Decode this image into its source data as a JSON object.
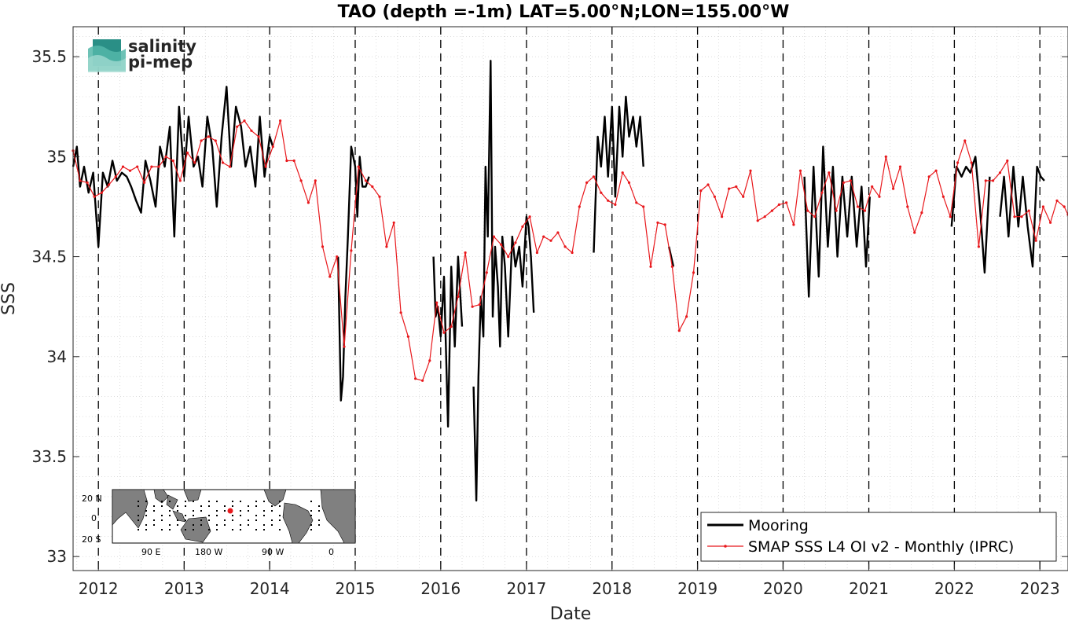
{
  "chart_data": {
    "type": "line",
    "title": "TAO (depth =-1m) LAT=5.00°N;LON=155.00°W",
    "xlabel": "Date",
    "ylabel": "SSS",
    "xlim": [
      "2011-09-15",
      "2023-05-01"
    ],
    "ylim": [
      32.93,
      35.65
    ],
    "yticks": [
      33,
      33.5,
      34,
      34.5,
      35,
      35.5
    ],
    "ytick_labels": [
      "33",
      "33.5",
      "34",
      "34.5",
      "35",
      "35.5"
    ],
    "xticks": [
      "2012-01-01",
      "2013-01-01",
      "2014-01-01",
      "2015-01-01",
      "2016-01-01",
      "2017-01-01",
      "2018-01-01",
      "2019-01-01",
      "2020-01-01",
      "2021-01-01",
      "2022-01-01",
      "2023-01-01"
    ],
    "xtick_labels": [
      "2012",
      "2013",
      "2014",
      "2015",
      "2016",
      "2017",
      "2018",
      "2019",
      "2020",
      "2021",
      "2022",
      "2023"
    ],
    "grid": true,
    "legend_position": "bottom-right",
    "series": [
      {
        "name": "Mooring",
        "color": "#000000",
        "x": [
          "2011-09-15",
          "2011-10-01",
          "2011-10-15",
          "2011-11-01",
          "2011-11-20",
          "2011-12-10",
          "2012-01-01",
          "2012-01-20",
          "2012-02-10",
          "2012-03-01",
          "2012-03-20",
          "2012-04-10",
          "2012-05-01",
          "2012-05-20",
          "2012-06-10",
          "2012-07-01",
          "2012-07-20",
          "2012-08-10",
          "2012-09-01",
          "2012-09-20",
          "2012-10-10",
          "2012-11-01",
          "2012-11-20",
          "2012-12-10",
          "2013-01-01",
          "2013-01-20",
          "2013-02-10",
          "2013-03-01",
          "2013-03-20",
          "2013-04-10",
          "2013-05-01",
          "2013-05-20",
          "2013-06-10",
          "2013-07-01",
          "2013-07-20",
          "2013-08-10",
          "2013-09-01",
          "2013-09-20",
          "2013-10-10",
          "2013-11-01",
          "2013-11-20",
          "2013-12-10",
          "2014-01-01",
          "2014-01-15",
          null,
          "2014-10-20",
          "2014-11-01",
          "2014-11-10",
          "2014-11-20",
          "2014-12-01",
          "2014-12-15",
          "2015-01-01",
          "2015-01-10",
          "2015-01-20",
          "2015-02-01",
          "2015-02-15",
          "2015-03-01",
          null,
          "2015-12-01",
          "2015-12-10",
          "2015-12-20",
          "2016-01-01",
          "2016-01-15",
          "2016-02-01",
          "2016-02-15",
          "2016-03-01",
          "2016-03-15",
          "2016-04-01",
          null,
          "2016-05-20",
          "2016-06-01",
          "2016-06-10",
          "2016-06-20",
          "2016-07-01",
          "2016-07-10",
          "2016-07-20",
          "2016-08-01",
          "2016-08-10",
          "2016-08-20",
          "2016-09-01",
          "2016-09-10",
          "2016-09-20",
          "2016-10-01",
          "2016-10-15",
          "2016-11-01",
          "2016-11-15",
          "2016-12-01",
          "2016-12-15",
          "2017-01-01",
          "2017-01-10",
          "2017-01-20",
          "2017-02-01",
          null,
          "2017-10-15",
          "2017-11-01",
          "2017-11-15",
          "2017-12-01",
          "2017-12-15",
          "2018-01-01",
          "2018-01-15",
          "2018-02-01",
          "2018-02-15",
          "2018-03-01",
          "2018-03-15",
          "2018-04-01",
          "2018-04-15",
          "2018-05-01",
          "2018-05-15",
          null,
          "2018-09-01",
          "2018-09-20",
          null,
          "2020-04-01",
          "2020-04-20",
          "2020-05-10",
          "2020-06-01",
          "2020-06-20",
          "2020-07-10",
          "2020-08-01",
          "2020-08-20",
          "2020-09-10",
          "2020-10-01",
          "2020-10-20",
          "2020-11-10",
          "2020-12-01",
          "2020-12-20",
          "2021-01-05",
          null,
          "2021-12-20",
          "2022-01-10",
          "2022-02-01",
          "2022-02-20",
          "2022-03-10",
          "2022-04-01",
          "2022-04-20",
          "2022-05-10",
          "2022-06-01",
          null,
          "2022-07-15",
          "2022-08-01",
          "2022-08-20",
          "2022-09-10",
          "2022-10-01",
          "2022-10-20",
          "2022-11-10",
          "2022-12-01",
          "2022-12-20",
          "2023-01-05",
          "2023-01-20"
        ],
        "y": [
          34.95,
          35.05,
          34.85,
          34.95,
          34.82,
          34.92,
          34.55,
          34.92,
          34.85,
          34.98,
          34.88,
          34.92,
          34.9,
          34.85,
          34.78,
          34.72,
          34.98,
          34.88,
          34.75,
          35.05,
          34.95,
          35.15,
          34.6,
          35.25,
          34.9,
          35.2,
          34.95,
          35.0,
          34.85,
          35.2,
          35.05,
          34.75,
          35.1,
          35.35,
          34.95,
          35.25,
          35.15,
          34.95,
          35.05,
          34.85,
          35.2,
          34.9,
          35.1,
          35.05,
          null,
          34.5,
          33.78,
          33.9,
          34.3,
          34.6,
          35.05,
          34.95,
          34.7,
          35.0,
          34.85,
          34.85,
          34.9,
          null,
          34.5,
          34.2,
          34.25,
          34.1,
          34.4,
          33.65,
          34.45,
          34.05,
          34.5,
          34.15,
          null,
          33.85,
          33.28,
          33.9,
          34.3,
          34.1,
          34.95,
          34.6,
          35.48,
          34.2,
          34.55,
          34.35,
          34.05,
          34.6,
          34.45,
          34.1,
          34.6,
          34.45,
          34.55,
          34.35,
          34.7,
          34.65,
          34.5,
          34.22,
          null,
          34.52,
          35.1,
          34.95,
          35.2,
          34.9,
          35.25,
          34.8,
          35.25,
          35.0,
          35.3,
          35.1,
          35.2,
          35.05,
          35.2,
          34.95,
          null,
          34.55,
          34.45,
          null,
          34.9,
          34.3,
          34.95,
          34.4,
          35.05,
          34.55,
          34.95,
          34.5,
          34.9,
          34.6,
          34.9,
          34.55,
          34.85,
          34.45,
          34.8,
          null,
          34.65,
          34.95,
          34.9,
          34.95,
          34.92,
          35.0,
          34.75,
          34.42,
          34.9,
          null,
          34.7,
          34.9,
          34.6,
          34.95,
          34.65,
          34.9,
          34.65,
          34.45,
          34.95,
          34.9,
          34.88
        ]
      },
      {
        "name": "SMAP SSS L4 OI v2 - Monthly (IPRC)",
        "color": "#e8181c",
        "x": [
          "2011-09-15",
          "2011-10-15",
          "2011-11-15",
          "2011-12-15",
          "2012-01-15",
          "2012-02-15",
          "2012-03-15",
          "2012-04-15",
          "2012-05-15",
          "2012-06-15",
          "2012-07-15",
          "2012-08-15",
          "2012-09-15",
          "2012-10-15",
          "2012-11-15",
          "2012-12-15",
          "2013-01-15",
          "2013-02-15",
          "2013-03-15",
          "2013-04-15",
          "2013-05-15",
          "2013-06-15",
          "2013-07-15",
          "2013-08-15",
          "2013-09-15",
          "2013-10-15",
          "2013-11-15",
          "2013-12-15",
          "2014-01-15",
          "2014-02-15",
          "2014-03-15",
          "2014-04-15",
          "2014-05-15",
          "2014-06-15",
          "2014-07-15",
          "2014-08-15",
          "2014-09-15",
          "2014-10-15",
          "2014-11-15",
          "2014-12-15",
          "2015-01-15",
          "2015-02-15",
          "2015-03-15",
          "2015-04-15",
          "2015-05-15",
          "2015-06-15",
          "2015-07-15",
          "2015-08-15",
          "2015-09-15",
          "2015-10-15",
          "2015-11-15",
          "2015-12-15",
          "2016-01-15",
          "2016-02-15",
          "2016-03-15",
          "2016-04-15",
          "2016-05-15",
          "2016-06-15",
          "2016-07-15",
          "2016-08-15",
          "2016-09-15",
          "2016-10-15",
          "2016-11-15",
          "2016-12-15",
          "2017-01-15",
          "2017-02-15",
          "2017-03-15",
          "2017-04-15",
          "2017-05-15",
          "2017-06-15",
          "2017-07-15",
          "2017-08-15",
          "2017-09-15",
          "2017-10-15",
          "2017-11-15",
          "2017-12-15",
          "2018-01-15",
          "2018-02-15",
          "2018-03-15",
          "2018-04-15",
          "2018-05-15",
          "2018-06-15",
          "2018-07-15",
          "2018-08-15",
          "2018-09-15",
          "2018-10-15",
          "2018-11-15",
          "2018-12-15",
          "2019-01-15",
          "2019-02-15",
          "2019-03-15",
          "2019-04-15",
          "2019-05-15",
          "2019-06-15",
          "2019-07-15",
          "2019-08-15",
          "2019-09-15",
          "2019-10-15",
          "2019-11-15",
          "2019-12-15",
          "2020-01-15",
          "2020-02-15",
          "2020-03-15",
          "2020-04-15",
          "2020-05-15",
          "2020-06-15",
          "2020-07-15",
          "2020-08-15",
          "2020-09-15",
          "2020-10-15",
          "2020-11-15",
          "2020-12-15",
          "2021-01-15",
          "2021-02-15",
          "2021-03-15",
          "2021-04-15",
          "2021-05-15",
          "2021-06-15",
          "2021-07-15",
          "2021-08-15",
          "2021-09-15",
          "2021-10-15",
          "2021-11-15",
          "2021-12-15",
          "2022-01-15",
          "2022-02-15",
          "2022-03-15",
          "2022-04-15",
          "2022-05-15",
          "2022-06-15",
          "2022-07-15",
          "2022-08-15",
          "2022-09-15",
          "2022-10-15",
          "2022-11-15",
          "2022-12-15",
          "2023-01-15",
          "2023-02-15",
          "2023-03-15",
          "2023-04-15",
          "2023-05-01"
        ],
        "y": [
          35.03,
          34.88,
          34.87,
          34.8,
          34.82,
          34.86,
          34.9,
          34.95,
          34.93,
          34.95,
          34.87,
          34.95,
          34.95,
          35.0,
          34.98,
          34.88,
          35.02,
          34.97,
          35.08,
          35.1,
          35.08,
          34.97,
          34.95,
          35.15,
          35.18,
          35.13,
          35.1,
          34.95,
          35.05,
          35.18,
          34.98,
          34.98,
          34.88,
          34.77,
          34.88,
          34.55,
          34.4,
          34.5,
          34.05,
          34.53,
          34.95,
          34.88,
          34.85,
          34.8,
          34.55,
          34.67,
          34.22,
          34.1,
          33.89,
          33.88,
          33.98,
          34.27,
          34.12,
          34.15,
          34.3,
          34.52,
          34.25,
          34.26,
          34.42,
          34.6,
          34.56,
          34.5,
          34.57,
          34.65,
          34.7,
          34.52,
          34.6,
          34.58,
          34.62,
          34.55,
          34.52,
          34.75,
          34.87,
          34.9,
          34.82,
          34.78,
          34.76,
          34.92,
          34.87,
          34.77,
          34.75,
          34.45,
          34.67,
          34.66,
          34.45,
          34.13,
          34.2,
          34.42,
          34.83,
          34.86,
          34.8,
          34.7,
          34.84,
          34.85,
          34.8,
          34.93,
          34.68,
          34.7,
          34.73,
          34.76,
          34.77,
          34.66,
          34.93,
          34.73,
          34.7,
          34.82,
          34.92,
          34.73,
          34.87,
          34.88,
          34.75,
          34.73,
          34.85,
          34.8,
          35.0,
          34.84,
          34.95,
          34.75,
          34.62,
          34.72,
          34.9,
          34.93,
          34.8,
          34.7,
          34.97,
          35.08,
          34.97,
          34.55,
          34.88,
          34.88,
          34.92,
          34.98,
          34.7,
          34.7,
          34.73,
          34.58,
          34.75,
          34.67,
          34.78,
          34.75,
          34.71
        ]
      }
    ]
  },
  "logo": {
    "line1": "salinity",
    "line2": "pi-mep"
  },
  "inset_map": {
    "lat_labels": [
      "20 N",
      "0",
      "20 S"
    ],
    "lon_labels": [
      "90 E",
      "180 W",
      "90 W",
      "0"
    ],
    "marker_color": "#e8181c"
  },
  "legend": {
    "entries": [
      "Mooring",
      "SMAP SSS L4 OI v2 - Monthly (IPRC)"
    ]
  }
}
